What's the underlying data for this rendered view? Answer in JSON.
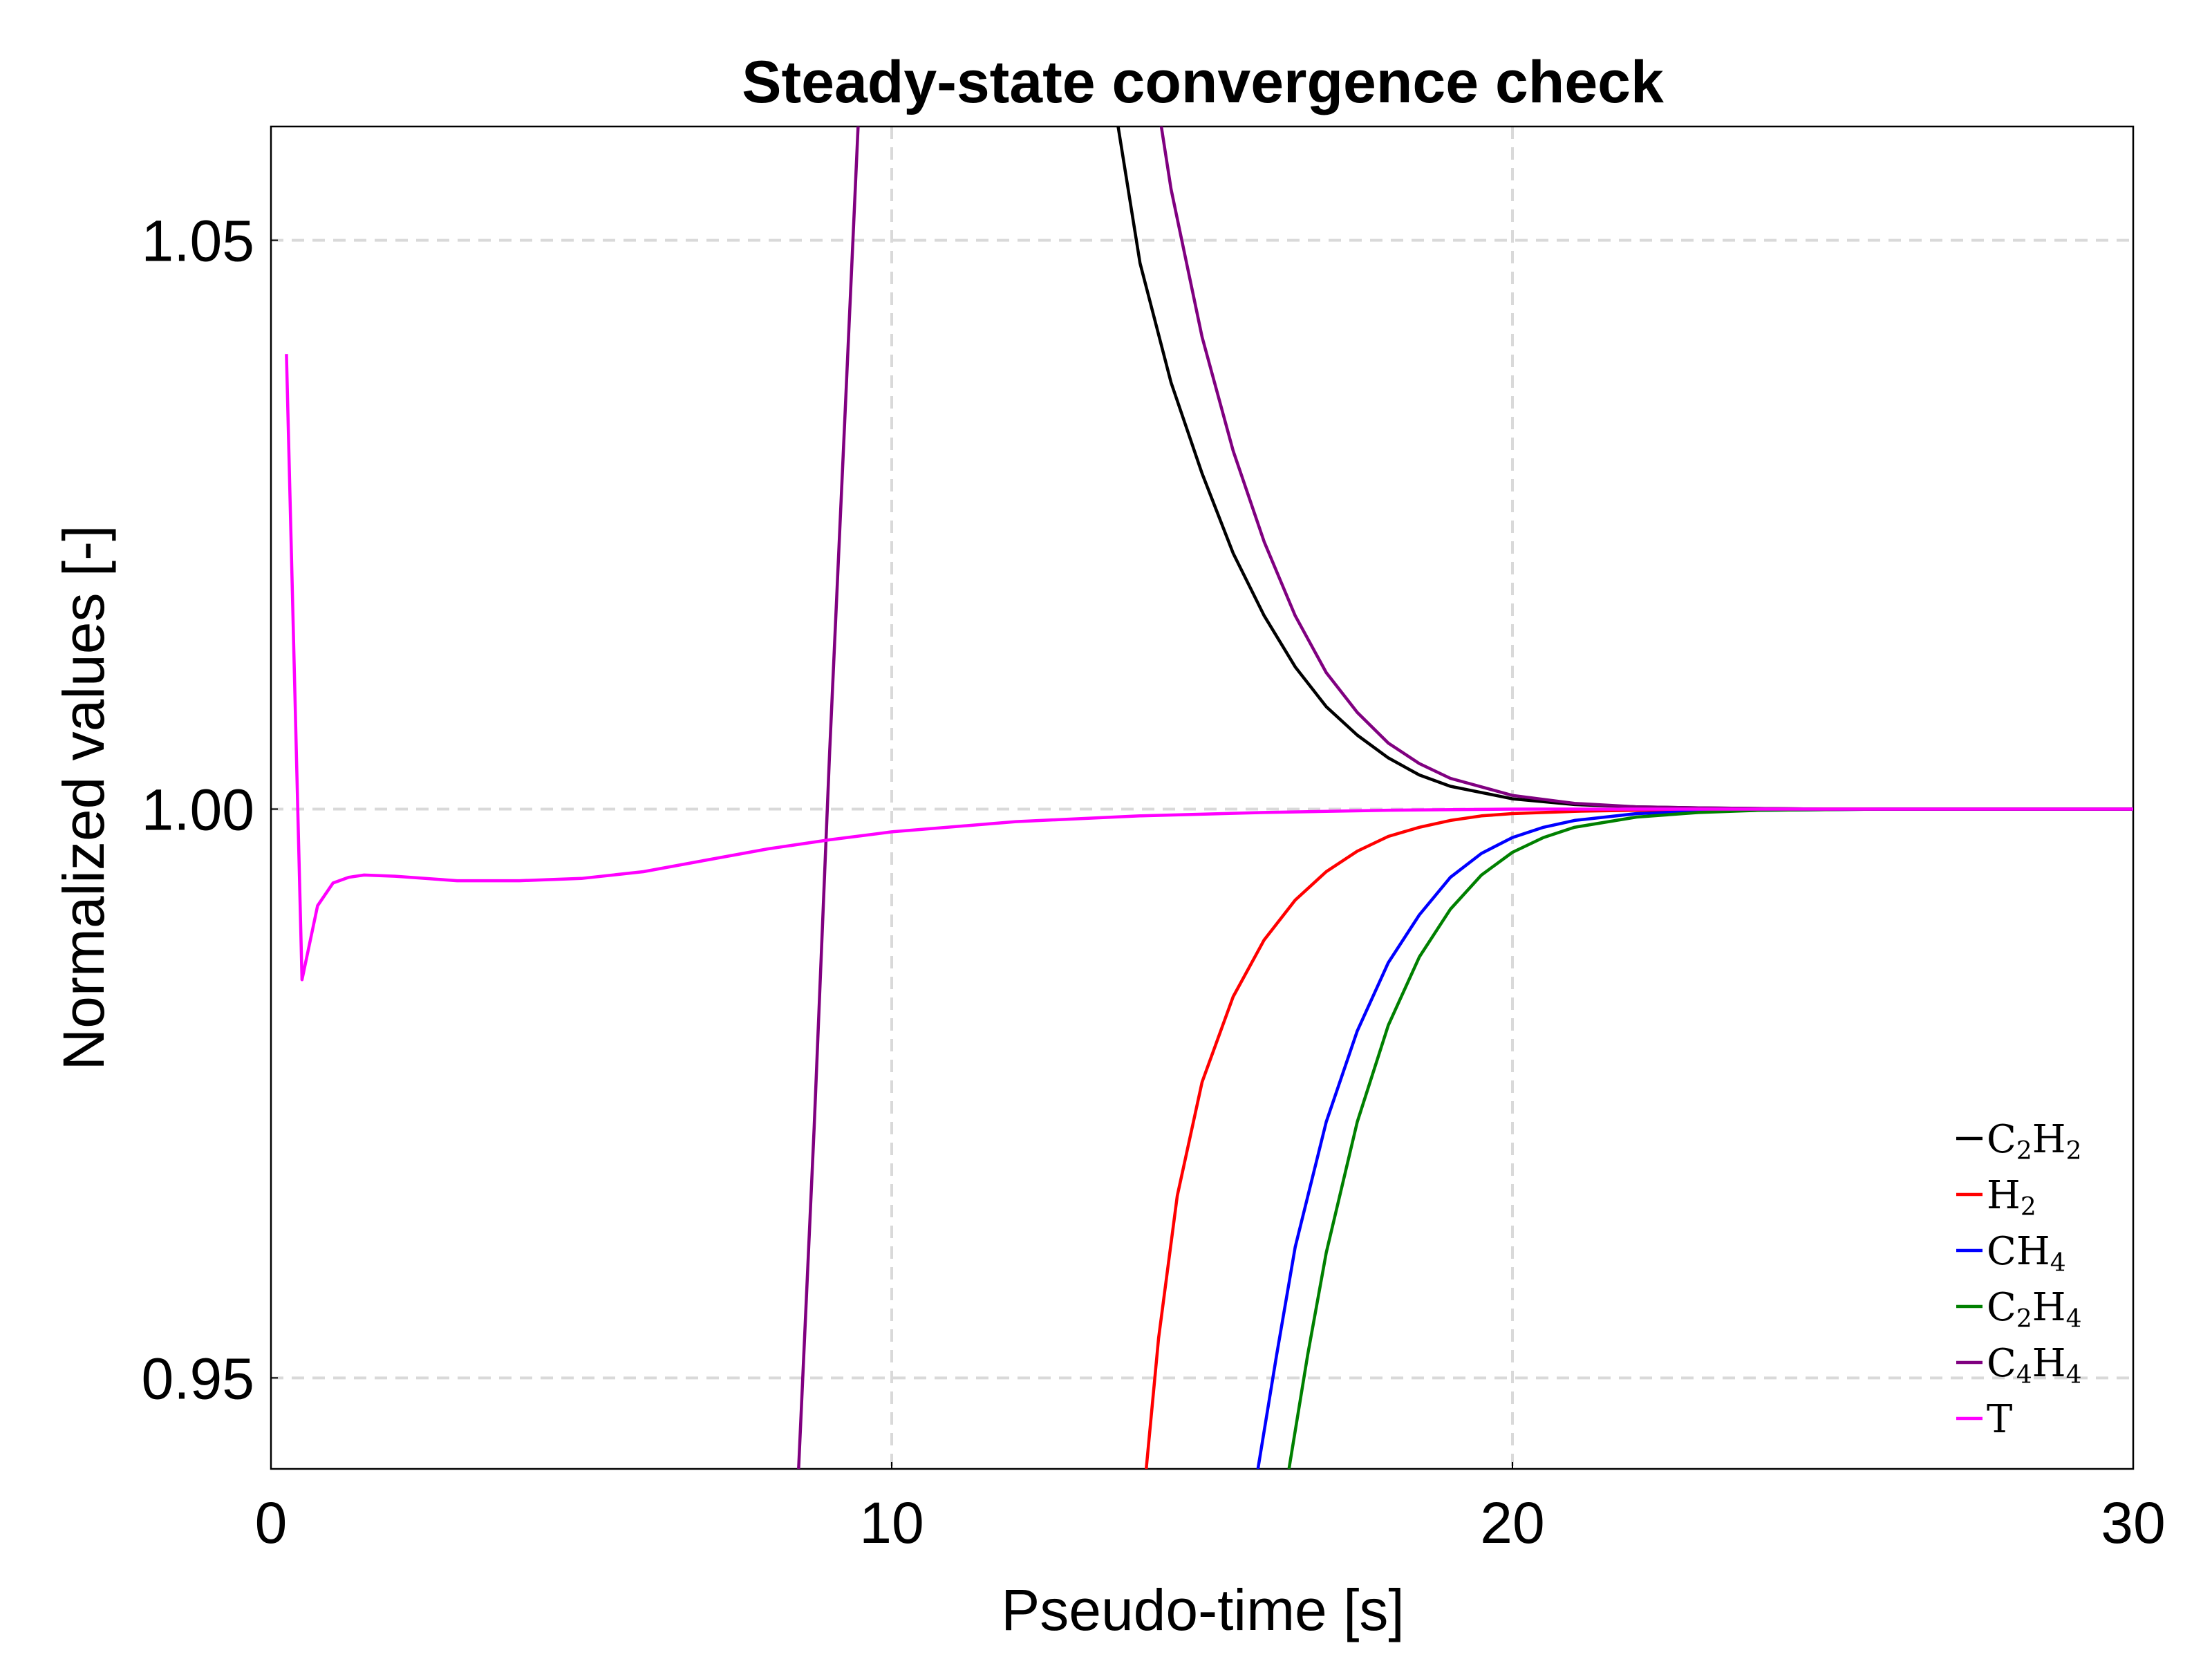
{
  "chart_data": {
    "type": "line",
    "title": "Steady-state convergence check",
    "xlabel": "Pseudo-time [s]",
    "ylabel": "Normalized values [-]",
    "xlim": [
      0,
      30
    ],
    "ylim": [
      0.942,
      1.06
    ],
    "xticks": [
      0,
      10,
      20,
      30
    ],
    "xtick_labels": [
      "0",
      "10",
      "20",
      "30"
    ],
    "yticks": [
      0.95,
      1.0,
      1.05
    ],
    "ytick_labels": [
      "0.95",
      "1.00",
      "1.05"
    ],
    "grid": true,
    "legend_position": "bottom-right",
    "series": [
      {
        "name": "C2H2",
        "legend": {
          "parts": [
            [
              "C",
              ""
            ],
            [
              "2",
              "sub"
            ],
            [
              "H",
              ""
            ],
            [
              "2",
              "sub"
            ]
          ]
        },
        "color": "#000000",
        "points": [
          [
            13.5,
            1.065
          ],
          [
            14.0,
            1.048
          ],
          [
            14.5,
            1.0375
          ],
          [
            15.0,
            1.0295
          ],
          [
            15.5,
            1.0225
          ],
          [
            16.0,
            1.017
          ],
          [
            16.5,
            1.0125
          ],
          [
            17.0,
            1.009
          ],
          [
            17.5,
            1.0065
          ],
          [
            18.0,
            1.0045
          ],
          [
            18.5,
            1.003
          ],
          [
            19.0,
            1.002
          ],
          [
            20.0,
            1.0009
          ],
          [
            21.0,
            1.0004
          ],
          [
            22.0,
            1.0002
          ],
          [
            23.0,
            1.0001
          ],
          [
            25.0,
            1.0
          ],
          [
            30.0,
            1.0
          ]
        ]
      },
      {
        "name": "H2",
        "legend": {
          "parts": [
            [
              "H",
              ""
            ],
            [
              "2",
              "sub"
            ]
          ]
        },
        "color": "#ff0000",
        "points": [
          [
            14.1,
            0.942
          ],
          [
            14.3,
            0.9535
          ],
          [
            14.6,
            0.966
          ],
          [
            15.0,
            0.976
          ],
          [
            15.5,
            0.9835
          ],
          [
            16.0,
            0.9885
          ],
          [
            16.5,
            0.992
          ],
          [
            17.0,
            0.9945
          ],
          [
            17.5,
            0.9963
          ],
          [
            18.0,
            0.9976
          ],
          [
            18.5,
            0.9984
          ],
          [
            19.0,
            0.999
          ],
          [
            19.5,
            0.9994
          ],
          [
            20.0,
            0.9996
          ],
          [
            21.0,
            0.9998
          ],
          [
            22.0,
            0.9999
          ],
          [
            24.0,
            1.0
          ],
          [
            30.0,
            1.0
          ]
        ]
      },
      {
        "name": "CH4",
        "legend": {
          "parts": [
            [
              "CH",
              ""
            ],
            [
              "4",
              "sub"
            ]
          ]
        },
        "color": "#0000ff",
        "points": [
          [
            15.9,
            0.942
          ],
          [
            16.2,
            0.952
          ],
          [
            16.5,
            0.9615
          ],
          [
            17.0,
            0.9725
          ],
          [
            17.5,
            0.9805
          ],
          [
            18.0,
            0.9865
          ],
          [
            18.5,
            0.9907
          ],
          [
            19.0,
            0.994
          ],
          [
            19.5,
            0.9961
          ],
          [
            20.0,
            0.9975
          ],
          [
            20.5,
            0.9984
          ],
          [
            21.0,
            0.999
          ],
          [
            22.0,
            0.9996
          ],
          [
            23.0,
            0.9998
          ],
          [
            24.0,
            0.9999
          ],
          [
            26.0,
            1.0
          ],
          [
            30.0,
            1.0
          ]
        ]
      },
      {
        "name": "C2H4",
        "legend": {
          "parts": [
            [
              "C",
              ""
            ],
            [
              "2",
              "sub"
            ],
            [
              "H",
              ""
            ],
            [
              "4",
              "sub"
            ]
          ]
        },
        "color": "#008000",
        "points": [
          [
            16.4,
            0.942
          ],
          [
            16.7,
            0.952
          ],
          [
            17.0,
            0.961
          ],
          [
            17.5,
            0.9725
          ],
          [
            18.0,
            0.981
          ],
          [
            18.5,
            0.987
          ],
          [
            19.0,
            0.9912
          ],
          [
            19.5,
            0.9942
          ],
          [
            20.0,
            0.9962
          ],
          [
            20.5,
            0.9975
          ],
          [
            21.0,
            0.9984
          ],
          [
            22.0,
            0.9993
          ],
          [
            23.0,
            0.9997
          ],
          [
            24.0,
            0.9999
          ],
          [
            26.0,
            1.0
          ],
          [
            30.0,
            1.0
          ]
        ]
      },
      {
        "name": "C4H4",
        "legend": {
          "parts": [
            [
              "C",
              ""
            ],
            [
              "4",
              "sub"
            ],
            [
              "H",
              ""
            ],
            [
              "4",
              "sub"
            ]
          ]
        },
        "color": "#800080",
        "points": [
          [
            8.5,
            0.942
          ],
          [
            8.75,
            0.972
          ],
          [
            9.0,
            1.005
          ],
          [
            9.25,
            1.035
          ],
          [
            9.5,
            1.065
          ],
          [
            14.2,
            1.065
          ],
          [
            14.5,
            1.0545
          ],
          [
            15.0,
            1.0415
          ],
          [
            15.5,
            1.0315
          ],
          [
            16.0,
            1.0235
          ],
          [
            16.5,
            1.017
          ],
          [
            17.0,
            1.012
          ],
          [
            17.5,
            1.0085
          ],
          [
            18.0,
            1.0058
          ],
          [
            18.5,
            1.004
          ],
          [
            19.0,
            1.0027
          ],
          [
            20.0,
            1.0012
          ],
          [
            21.0,
            1.0005
          ],
          [
            22.0,
            1.0002
          ],
          [
            23.0,
            1.0001
          ],
          [
            25.0,
            1.0
          ],
          [
            30.0,
            1.0
          ]
        ],
        "break_after_index": 4
      },
      {
        "name": "T",
        "legend": {
          "parts": [
            [
              "T",
              ""
            ]
          ]
        },
        "color": "#ff00ff",
        "points": [
          [
            0.25,
            1.04
          ],
          [
            0.5,
            0.985
          ],
          [
            0.75,
            0.9915
          ],
          [
            1.0,
            0.9935
          ],
          [
            1.25,
            0.994
          ],
          [
            1.5,
            0.9942
          ],
          [
            2.0,
            0.9941
          ],
          [
            3.0,
            0.9937
          ],
          [
            4.0,
            0.9937
          ],
          [
            5.0,
            0.9939
          ],
          [
            6.0,
            0.9945
          ],
          [
            7.0,
            0.9955
          ],
          [
            8.0,
            0.9965
          ],
          [
            9.0,
            0.9973
          ],
          [
            10.0,
            0.998
          ],
          [
            12.0,
            0.9989
          ],
          [
            14.0,
            0.9994
          ],
          [
            16.0,
            0.9997
          ],
          [
            18.0,
            0.9999
          ],
          [
            20.0,
            1.0
          ],
          [
            30.0,
            1.0
          ]
        ]
      }
    ]
  }
}
